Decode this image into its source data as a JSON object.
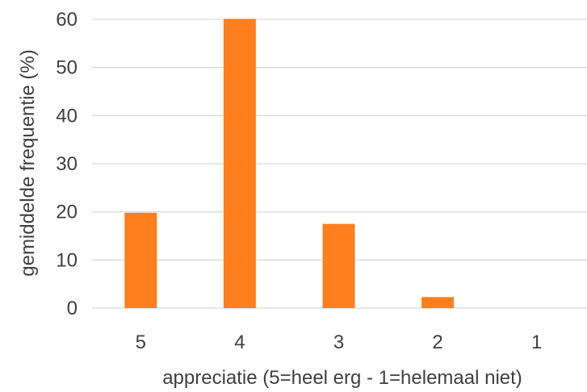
{
  "chart_data": {
    "type": "bar",
    "categories": [
      "5",
      "4",
      "3",
      "2",
      "1"
    ],
    "values": [
      19.8,
      60.1,
      17.5,
      2.3,
      0
    ],
    "title": "",
    "xlabel": "appreciatie (5=heel erg - 1=helemaal niet)",
    "ylabel": "gemiddelde frequentie (%)",
    "ylim": [
      0,
      60
    ],
    "yticks": [
      "0",
      "10",
      "20",
      "30",
      "40",
      "50",
      "60"
    ],
    "grid": true,
    "legend": "none",
    "bar_color": "#FF7F1E"
  }
}
